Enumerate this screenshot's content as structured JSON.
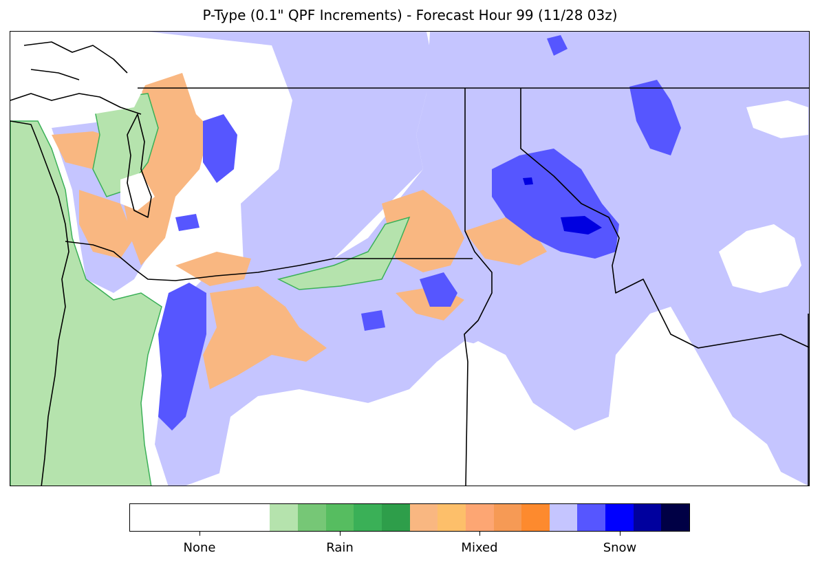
{
  "title": "P-Type (0.1\" QPF Increments) - Forecast Hour 99 (11/28 03z)",
  "legend": {
    "categories": [
      {
        "name": "None",
        "colors": [
          "#ffffff"
        ]
      },
      {
        "name": "Rain",
        "colors": [
          "#b5e3ad",
          "#76c776",
          "#56bd60",
          "#3ab057",
          "#2e9e4a"
        ]
      },
      {
        "name": "Mixed",
        "colors": [
          "#f9b781",
          "#fdbf6a",
          "#fda673",
          "#f69a55",
          "#fd8a2e"
        ]
      },
      {
        "name": "Snow",
        "colors": [
          "#c5c5ff",
          "#5656ff",
          "#0000ff",
          "#00009e",
          "#000045"
        ]
      }
    ]
  },
  "colors": {
    "rain_light": "#b5e3ad",
    "rain_edge": "#3ab057",
    "mixed": "#f9b781",
    "snow_light": "#c5c5ff",
    "snow_moderate": "#5656ff",
    "snow_heavy": "#0000e0",
    "border": "#000000",
    "county": "#888888"
  }
}
